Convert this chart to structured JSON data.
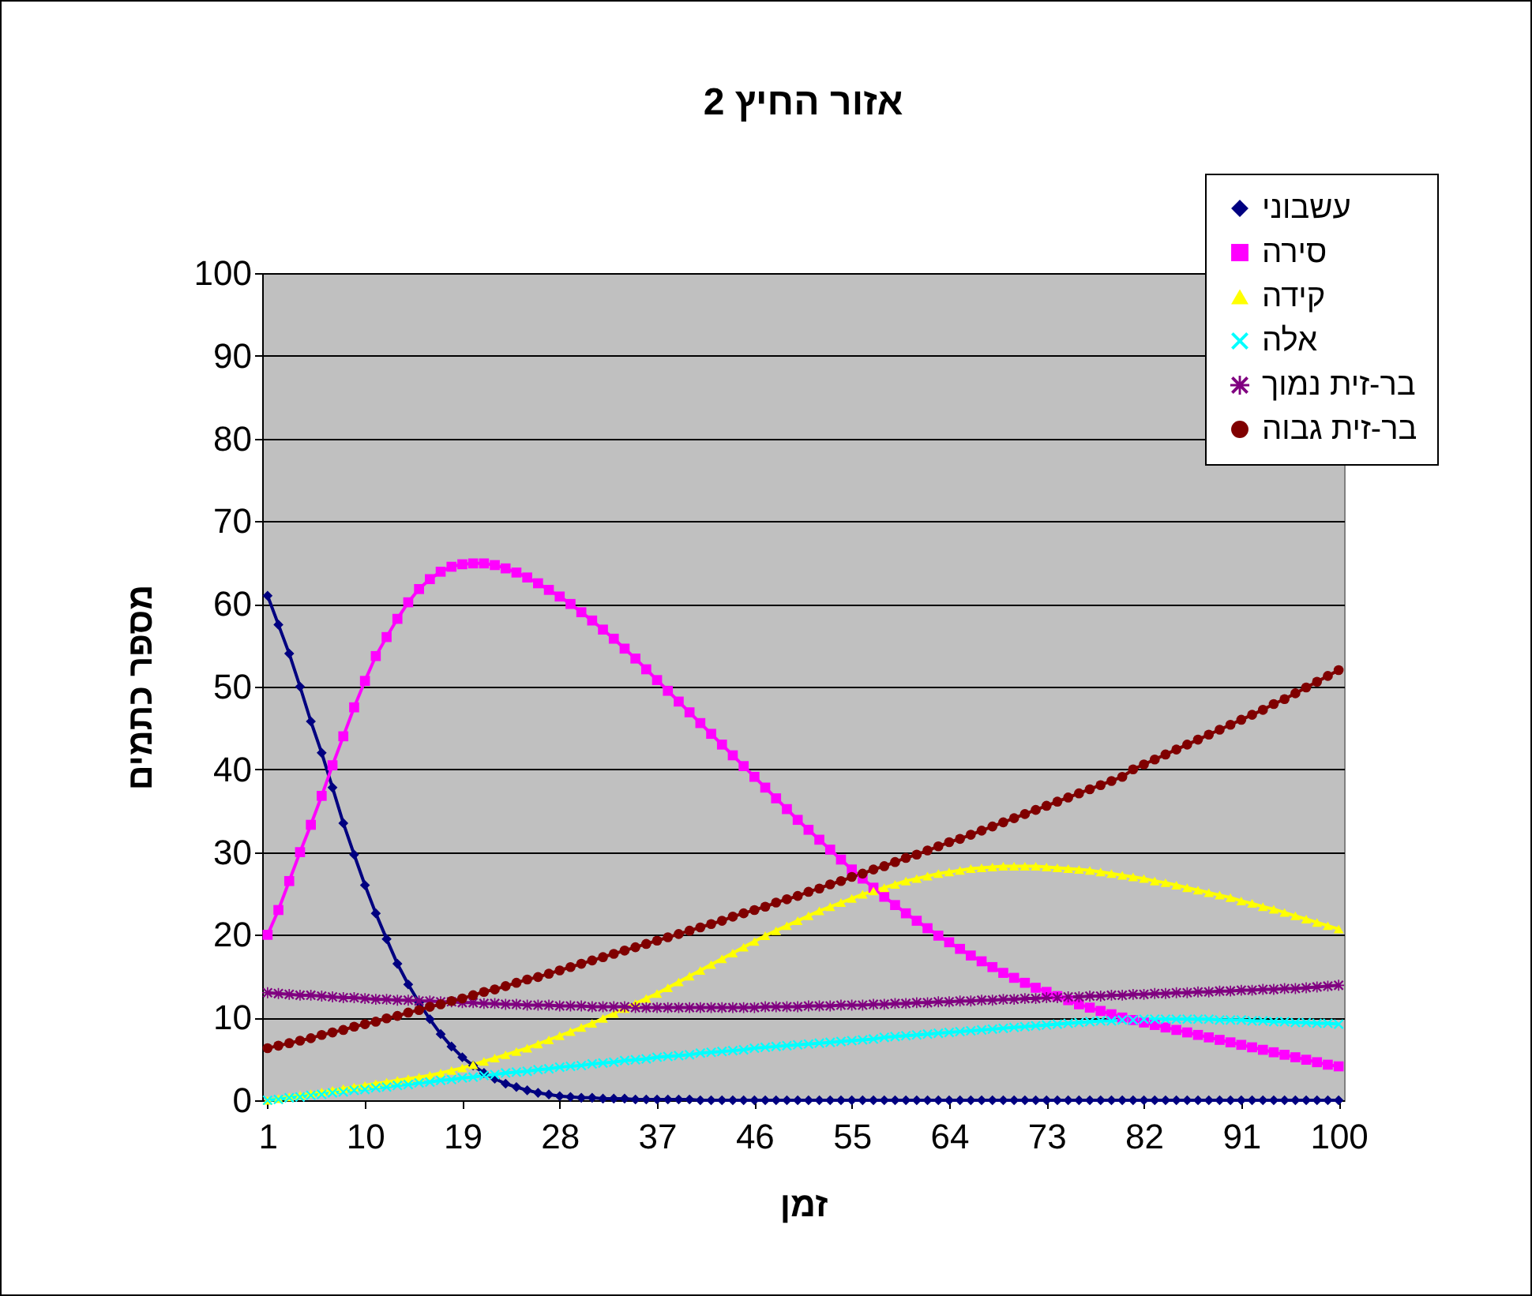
{
  "chart_data": {
    "type": "line",
    "title": "אזור החיץ 2",
    "xlabel": "זמן",
    "ylabel": "מספר כתמים",
    "x": [
      1,
      2,
      3,
      4,
      5,
      6,
      7,
      8,
      9,
      10,
      11,
      12,
      13,
      14,
      15,
      16,
      17,
      18,
      19,
      20,
      21,
      22,
      23,
      24,
      25,
      26,
      27,
      28,
      29,
      30,
      31,
      32,
      33,
      34,
      35,
      36,
      37,
      38,
      39,
      40,
      41,
      42,
      43,
      44,
      45,
      46,
      47,
      48,
      49,
      50,
      51,
      52,
      53,
      54,
      55,
      56,
      57,
      58,
      59,
      60,
      61,
      62,
      63,
      64,
      65,
      66,
      67,
      68,
      69,
      70,
      71,
      72,
      73,
      74,
      75,
      76,
      77,
      78,
      79,
      80,
      81,
      82,
      83,
      84,
      85,
      86,
      87,
      88,
      89,
      90,
      91,
      92,
      93,
      94,
      95,
      96,
      97,
      98,
      99,
      100
    ],
    "xlim": [
      0.5,
      100.5
    ],
    "xticks": [
      1,
      10,
      19,
      28,
      37,
      46,
      55,
      64,
      73,
      82,
      91,
      100
    ],
    "ylim": [
      0,
      100
    ],
    "yticks": [
      0,
      10,
      20,
      30,
      40,
      50,
      60,
      70,
      80,
      90,
      100
    ],
    "grid": "y",
    "legend": "right",
    "series": [
      {
        "name": "עשבוני",
        "color": "#000080",
        "marker": "diamond",
        "values": [
          61,
          57.5,
          54,
          50,
          45.8,
          42,
          37.8,
          33.5,
          29.7,
          26,
          22.6,
          19.5,
          16.5,
          14,
          11.8,
          9.8,
          8,
          6.5,
          5.2,
          4.2,
          3.3,
          2.6,
          2,
          1.6,
          1.2,
          0.9,
          0.7,
          0.5,
          0.4,
          0.3,
          0.3,
          0.2,
          0.2,
          0.2,
          0.1,
          0.1,
          0.1,
          0.1,
          0.1,
          0.1,
          0,
          0,
          0,
          0,
          0,
          0,
          0,
          0,
          0,
          0,
          0,
          0,
          0,
          0,
          0,
          0,
          0,
          0,
          0,
          0,
          0,
          0,
          0,
          0,
          0,
          0,
          0,
          0,
          0,
          0,
          0,
          0,
          0,
          0,
          0,
          0,
          0,
          0,
          0,
          0,
          0,
          0,
          0,
          0,
          0,
          0,
          0,
          0,
          0,
          0,
          0,
          0,
          0,
          0,
          0,
          0,
          0,
          0,
          0,
          0
        ]
      },
      {
        "name": "סירה",
        "color": "#ff00ff",
        "marker": "square",
        "values": [
          20,
          23,
          26.5,
          30,
          33.3,
          36.8,
          40.5,
          44,
          47.5,
          50.7,
          53.7,
          56,
          58.2,
          60.2,
          61.8,
          63,
          63.9,
          64.5,
          64.8,
          64.9,
          64.9,
          64.7,
          64.3,
          63.8,
          63.2,
          62.5,
          61.7,
          60.9,
          60,
          59,
          58,
          56.9,
          55.8,
          54.6,
          53.4,
          52.1,
          50.8,
          49.5,
          48.2,
          46.9,
          45.6,
          44.3,
          43,
          41.7,
          40.4,
          39.1,
          37.8,
          36.5,
          35.2,
          33.9,
          32.7,
          31.5,
          30.3,
          29.1,
          27.9,
          26.8,
          25.7,
          24.6,
          23.6,
          22.6,
          21.7,
          20.8,
          19.9,
          19.1,
          18.3,
          17.5,
          16.8,
          16.1,
          15.4,
          14.8,
          14.2,
          13.6,
          13.1,
          12.6,
          12.1,
          11.6,
          11.2,
          10.8,
          10.4,
          10,
          9.7,
          9.4,
          9.1,
          8.8,
          8.5,
          8.2,
          7.9,
          7.6,
          7.3,
          7,
          6.7,
          6.4,
          6.1,
          5.8,
          5.5,
          5.2,
          4.9,
          4.6,
          4.3,
          4.1
        ]
      },
      {
        "name": "קידה",
        "color": "#ffff00",
        "marker": "triangle",
        "values": [
          0,
          0.2,
          0.4,
          0.6,
          0.8,
          1,
          1.2,
          1.4,
          1.6,
          1.8,
          2,
          2.2,
          2.4,
          2.6,
          2.8,
          3,
          3.3,
          3.6,
          3.9,
          4.3,
          4.7,
          5.1,
          5.5,
          5.9,
          6.3,
          6.8,
          7.3,
          7.8,
          8.3,
          8.8,
          9.3,
          9.9,
          10.5,
          11.1,
          11.7,
          12.3,
          12.9,
          13.6,
          14.3,
          15,
          15.7,
          16.4,
          17.1,
          17.8,
          18.5,
          19.2,
          19.9,
          20.5,
          21.1,
          21.7,
          22.3,
          22.9,
          23.4,
          23.9,
          24.4,
          24.9,
          25.3,
          25.7,
          26.1,
          26.5,
          26.8,
          27.1,
          27.4,
          27.6,
          27.8,
          28,
          28.1,
          28.2,
          28.3,
          28.3,
          28.3,
          28.3,
          28.2,
          28.1,
          28,
          27.9,
          27.8,
          27.6,
          27.4,
          27.2,
          27,
          26.8,
          26.5,
          26.3,
          26,
          25.7,
          25.4,
          25.1,
          24.8,
          24.5,
          24.1,
          23.8,
          23.4,
          23.1,
          22.7,
          22.3,
          21.9,
          21.5,
          21.1,
          20.7
        ]
      },
      {
        "name": "אלה",
        "color": "#00ffff",
        "marker": "cross",
        "values": [
          0,
          0.1,
          0.3,
          0.4,
          0.6,
          0.7,
          0.9,
          1,
          1.2,
          1.3,
          1.5,
          1.6,
          1.8,
          1.9,
          2.1,
          2.2,
          2.4,
          2.5,
          2.7,
          2.8,
          3,
          3.1,
          3.3,
          3.4,
          3.5,
          3.7,
          3.8,
          4,
          4.1,
          4.2,
          4.4,
          4.5,
          4.6,
          4.8,
          4.9,
          5,
          5.2,
          5.3,
          5.4,
          5.5,
          5.7,
          5.8,
          5.9,
          6,
          6.1,
          6.3,
          6.4,
          6.5,
          6.6,
          6.7,
          6.8,
          6.9,
          7,
          7.1,
          7.2,
          7.3,
          7.4,
          7.6,
          7.7,
          7.8,
          7.9,
          8,
          8.1,
          8.2,
          8.3,
          8.4,
          8.5,
          8.6,
          8.7,
          8.8,
          8.9,
          9,
          9.1,
          9.2,
          9.3,
          9.4,
          9.5,
          9.6,
          9.6,
          9.7,
          9.7,
          9.8,
          9.8,
          9.8,
          9.8,
          9.8,
          9.8,
          9.8,
          9.7,
          9.7,
          9.7,
          9.6,
          9.6,
          9.5,
          9.5,
          9.4,
          9.4,
          9.3,
          9.3,
          9.2
        ]
      },
      {
        "name": "בר-זית נמוך",
        "color": "#800080",
        "marker": "star",
        "values": [
          13,
          12.9,
          12.8,
          12.7,
          12.7,
          12.6,
          12.5,
          12.4,
          12.4,
          12.3,
          12.2,
          12.2,
          12.1,
          12.1,
          12,
          12,
          11.9,
          11.9,
          11.8,
          11.8,
          11.7,
          11.7,
          11.6,
          11.6,
          11.5,
          11.5,
          11.5,
          11.4,
          11.4,
          11.4,
          11.3,
          11.3,
          11.3,
          11.3,
          11.2,
          11.2,
          11.2,
          11.2,
          11.2,
          11.2,
          11.2,
          11.2,
          11.2,
          11.2,
          11.2,
          11.2,
          11.3,
          11.3,
          11.3,
          11.3,
          11.4,
          11.4,
          11.4,
          11.5,
          11.5,
          11.5,
          11.6,
          11.6,
          11.7,
          11.7,
          11.8,
          11.8,
          11.9,
          11.9,
          12,
          12,
          12.1,
          12.1,
          12.2,
          12.2,
          12.3,
          12.3,
          12.4,
          12.4,
          12.5,
          12.5,
          12.6,
          12.6,
          12.7,
          12.7,
          12.8,
          12.8,
          12.9,
          12.9,
          13,
          13,
          13.1,
          13.1,
          13.2,
          13.2,
          13.3,
          13.3,
          13.4,
          13.4,
          13.5,
          13.5,
          13.6,
          13.7,
          13.8,
          13.9
        ]
      },
      {
        "name": "בר-זית גבוה",
        "color": "#800000",
        "marker": "circle",
        "values": [
          6.3,
          6.6,
          6.9,
          7.2,
          7.5,
          7.9,
          8.2,
          8.5,
          8.9,
          9.2,
          9.5,
          9.9,
          10.2,
          10.6,
          10.9,
          11.3,
          11.6,
          12,
          12.3,
          12.7,
          13.1,
          13.4,
          13.8,
          14.2,
          14.6,
          14.9,
          15.3,
          15.7,
          16.1,
          16.5,
          16.9,
          17.3,
          17.7,
          18.1,
          18.5,
          18.9,
          19.3,
          19.7,
          20.1,
          20.5,
          20.9,
          21.3,
          21.7,
          22.2,
          22.6,
          23,
          23.4,
          23.9,
          24.3,
          24.7,
          25.2,
          25.6,
          26.1,
          26.5,
          27,
          27.4,
          27.9,
          28.3,
          28.8,
          29.3,
          29.7,
          30.2,
          30.7,
          31.2,
          31.6,
          32.1,
          32.6,
          33.1,
          33.6,
          34.1,
          34.6,
          35.1,
          35.6,
          36.1,
          36.6,
          37.1,
          37.6,
          38.1,
          38.6,
          39.1,
          40,
          40.6,
          41.2,
          41.8,
          42.4,
          43,
          43.6,
          44.2,
          44.8,
          45.4,
          46,
          46.6,
          47.2,
          47.9,
          48.5,
          49.2,
          49.9,
          50.6,
          51.3,
          52
        ]
      }
    ]
  }
}
